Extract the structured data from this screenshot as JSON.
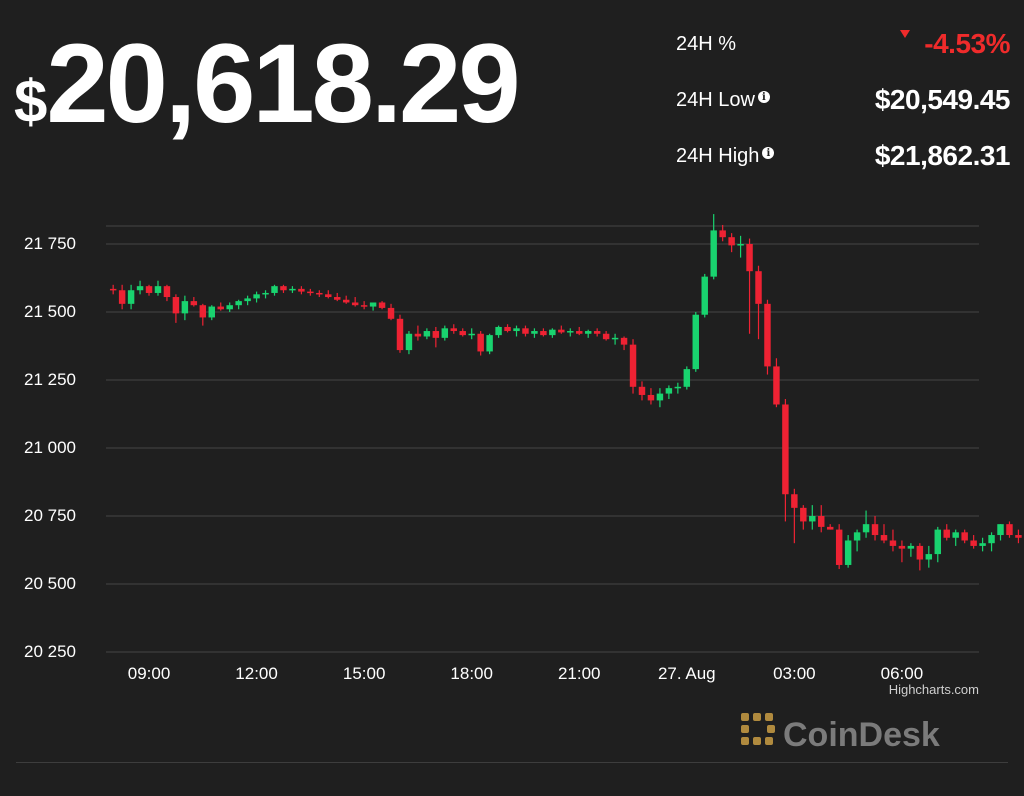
{
  "price": {
    "currency": "$",
    "amount": "20,618.29"
  },
  "stats": [
    {
      "label": "24H %",
      "value": "-4.53%",
      "info": false,
      "negative": true
    },
    {
      "label": "24H Low",
      "value": "$20,549.45",
      "info": true,
      "negative": false
    },
    {
      "label": "24H High",
      "value": "$21,862.31",
      "info": true,
      "negative": false
    }
  ],
  "icons": {
    "info": "info-icon",
    "down": "triangle-down-icon",
    "logo": "coindesk-logo"
  },
  "colors": {
    "background": "#1f1f1f",
    "up": "#19d36f",
    "down": "#ee2233",
    "grid": "#454545",
    "negative_text": "#ef2b2b"
  },
  "credit": "Highcharts.com",
  "brand": "CoinDesk",
  "chart_data": {
    "type": "candlestick",
    "title": "",
    "xlabel": "",
    "ylabel": "",
    "grid": true,
    "legend": "none",
    "ylim": [
      20250,
      21875
    ],
    "y_ticks": [
      20250,
      20500,
      20750,
      21000,
      21250,
      21500,
      21750
    ],
    "y_tick_labels": [
      "20 250",
      "20 500",
      "20 750",
      "21 000",
      "21 250",
      "21 500",
      "21 750"
    ],
    "x_ticks": [
      "09:00",
      "12:00",
      "15:00",
      "18:00",
      "21:00",
      "27. Aug",
      "03:00",
      "06:00"
    ],
    "x_tick_hours": [
      9,
      12,
      15,
      18,
      21,
      24,
      27,
      30
    ],
    "xlim_hours": [
      7.8,
      32.15
    ],
    "interval_minutes": 15,
    "series": [
      {
        "start_hour": 8.0,
        "ohlc": [
          [
            21585,
            21600,
            21565,
            21580
          ],
          [
            21580,
            21600,
            21510,
            21530
          ],
          [
            21530,
            21600,
            21510,
            21580
          ],
          [
            21580,
            21615,
            21565,
            21595
          ],
          [
            21595,
            21600,
            21560,
            21570
          ],
          [
            21570,
            21615,
            21560,
            21595
          ],
          [
            21595,
            21600,
            21540,
            21555
          ],
          [
            21555,
            21565,
            21460,
            21495
          ],
          [
            21495,
            21560,
            21470,
            21540
          ],
          [
            21540,
            21555,
            21520,
            21525
          ],
          [
            21525,
            21530,
            21450,
            21480
          ],
          [
            21480,
            21525,
            21470,
            21520
          ],
          [
            21520,
            21535,
            21505,
            21510
          ],
          [
            21510,
            21535,
            21500,
            21525
          ],
          [
            21525,
            21545,
            21510,
            21540
          ],
          [
            21540,
            21560,
            21525,
            21550
          ],
          [
            21550,
            21575,
            21535,
            21565
          ],
          [
            21565,
            21580,
            21550,
            21570
          ],
          [
            21570,
            21600,
            21560,
            21595
          ],
          [
            21595,
            21600,
            21570,
            21580
          ],
          [
            21580,
            21595,
            21570,
            21585
          ],
          [
            21585,
            21595,
            21565,
            21575
          ],
          [
            21575,
            21585,
            21560,
            21570
          ],
          [
            21570,
            21580,
            21555,
            21565
          ],
          [
            21565,
            21580,
            21550,
            21555
          ],
          [
            21555,
            21570,
            21540,
            21545
          ],
          [
            21545,
            21560,
            21530,
            21535
          ],
          [
            21535,
            21555,
            21520,
            21525
          ],
          [
            21525,
            21540,
            21510,
            21520
          ],
          [
            21520,
            21535,
            21505,
            21535
          ],
          [
            21535,
            21540,
            21510,
            21515
          ],
          [
            21515,
            21530,
            21470,
            21475
          ],
          [
            21475,
            21490,
            21350,
            21360
          ],
          [
            21360,
            21430,
            21345,
            21420
          ],
          [
            21420,
            21450,
            21395,
            21410
          ],
          [
            21410,
            21440,
            21400,
            21430
          ],
          [
            21430,
            21445,
            21370,
            21405
          ],
          [
            21405,
            21450,
            21395,
            21440
          ],
          [
            21440,
            21455,
            21420,
            21430
          ],
          [
            21430,
            21440,
            21410,
            21415
          ],
          [
            21415,
            21440,
            21400,
            21420
          ],
          [
            21420,
            21430,
            21340,
            21355
          ],
          [
            21355,
            21420,
            21345,
            21415
          ],
          [
            21415,
            21450,
            21405,
            21445
          ],
          [
            21445,
            21455,
            21425,
            21430
          ],
          [
            21430,
            21450,
            21410,
            21440
          ],
          [
            21440,
            21450,
            21410,
            21420
          ],
          [
            21420,
            21440,
            21405,
            21430
          ],
          [
            21430,
            21440,
            21410,
            21415
          ],
          [
            21415,
            21440,
            21405,
            21435
          ],
          [
            21435,
            21450,
            21420,
            21425
          ],
          [
            21425,
            21440,
            21410,
            21430
          ],
          [
            21430,
            21445,
            21415,
            21420
          ],
          [
            21420,
            21435,
            21405,
            21430
          ],
          [
            21430,
            21440,
            21410,
            21420
          ],
          [
            21420,
            21430,
            21395,
            21400
          ],
          [
            21400,
            21420,
            21380,
            21405
          ],
          [
            21405,
            21410,
            21360,
            21380
          ],
          [
            21380,
            21400,
            21200,
            21225
          ],
          [
            21225,
            21245,
            21175,
            21195
          ],
          [
            21195,
            21220,
            21160,
            21175
          ],
          [
            21175,
            21220,
            21150,
            21200
          ],
          [
            21200,
            21230,
            21180,
            21220
          ],
          [
            21220,
            21240,
            21200,
            21225
          ],
          [
            21225,
            21300,
            21215,
            21290
          ],
          [
            21290,
            21500,
            21280,
            21490
          ],
          [
            21490,
            21640,
            21480,
            21630
          ],
          [
            21630,
            21860,
            21620,
            21800
          ],
          [
            21800,
            21820,
            21760,
            21775
          ],
          [
            21775,
            21790,
            21720,
            21745
          ],
          [
            21745,
            21780,
            21700,
            21750
          ],
          [
            21750,
            21770,
            21420,
            21650
          ],
          [
            21650,
            21670,
            21400,
            21530
          ],
          [
            21530,
            21545,
            21270,
            21300
          ],
          [
            21300,
            21330,
            21150,
            21160
          ],
          [
            21160,
            21180,
            20730,
            20830
          ],
          [
            20830,
            20850,
            20650,
            20780
          ],
          [
            20780,
            20790,
            20700,
            20730
          ],
          [
            20730,
            20790,
            20700,
            20750
          ],
          [
            20750,
            20790,
            20690,
            20710
          ],
          [
            20710,
            20720,
            20700,
            20700
          ],
          [
            20700,
            20720,
            20555,
            20570
          ],
          [
            20570,
            20680,
            20560,
            20660
          ],
          [
            20660,
            20700,
            20620,
            20690
          ],
          [
            20690,
            20770,
            20670,
            20720
          ],
          [
            20720,
            20750,
            20660,
            20680
          ],
          [
            20680,
            20720,
            20650,
            20660
          ],
          [
            20660,
            20700,
            20620,
            20640
          ],
          [
            20640,
            20660,
            20580,
            20630
          ],
          [
            20630,
            20650,
            20600,
            20640
          ],
          [
            20640,
            20650,
            20550,
            20590
          ],
          [
            20590,
            20640,
            20560,
            20610
          ],
          [
            20610,
            20710,
            20580,
            20700
          ],
          [
            20700,
            20720,
            20660,
            20670
          ],
          [
            20670,
            20700,
            20640,
            20690
          ],
          [
            20690,
            20700,
            20650,
            20660
          ],
          [
            20660,
            20680,
            20630,
            20640
          ],
          [
            20640,
            20670,
            20620,
            20650
          ],
          [
            20650,
            20690,
            20620,
            20680
          ],
          [
            20680,
            20720,
            20660,
            20720
          ],
          [
            20720,
            20730,
            20670,
            20680
          ],
          [
            20680,
            20700,
            20650,
            20670
          ],
          [
            20670,
            20690,
            20640,
            20660
          ],
          [
            20660,
            20670,
            20600,
            20610
          ],
          [
            20610,
            20650,
            20580,
            20590
          ],
          [
            20590,
            20640,
            20570,
            20630
          ],
          [
            20630,
            20660,
            20610,
            20650
          ],
          [
            20650,
            20670,
            20630,
            20660
          ],
          [
            20660,
            20670,
            20600,
            20620
          ],
          [
            20620,
            20640,
            20600,
            20615
          ]
        ]
      }
    ]
  }
}
